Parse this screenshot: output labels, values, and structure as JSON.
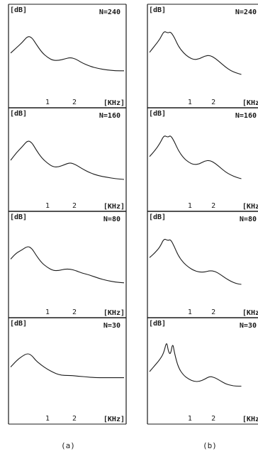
{
  "colors": {
    "ink": "#1a1a1a",
    "background": "#ffffff"
  },
  "columns": [
    {
      "caption": "(a)",
      "panels": [
        {
          "ylabel": "[dB]",
          "n_label": "N=240",
          "xunit": "[KHz]",
          "xticks": [
            "1",
            "2"
          ]
        },
        {
          "ylabel": "[dB]",
          "n_label": "N=160",
          "xunit": "[KHz]",
          "xticks": [
            "1",
            "2"
          ]
        },
        {
          "ylabel": "[dB]",
          "n_label": "N=80",
          "xunit": "[KHz]",
          "xticks": [
            "1",
            "2"
          ]
        },
        {
          "ylabel": "[dB]",
          "n_label": "N=30",
          "xunit": "[KHz]",
          "xticks": [
            "1",
            "2"
          ]
        }
      ]
    },
    {
      "caption": "(b)",
      "panels": [
        {
          "ylabel": "[dB]",
          "n_label": "N=240",
          "xunit": "[KHz",
          "xticks": [
            "1",
            "2"
          ]
        },
        {
          "ylabel": "[dB]",
          "n_label": "N=160",
          "xunit": "[KHz",
          "xticks": [
            "1",
            "2"
          ]
        },
        {
          "ylabel": "[dB]",
          "n_label": "N=80",
          "xunit": "[KHz",
          "xticks": [
            "1",
            "2"
          ]
        },
        {
          "ylabel": "[dB]",
          "n_label": "N=30",
          "xunit": "[KHz",
          "xticks": [
            "1",
            "2"
          ]
        }
      ]
    }
  ],
  "chart_data": {
    "type": "line",
    "note_units": "x in kHz, y in relative dB (unlabelled scale, 0-1 of panel height)",
    "xlim": [
      0,
      4
    ],
    "ylim": [
      0,
      1
    ],
    "panels": [
      {
        "column": "(a)",
        "label": "N=240",
        "x": [
          0,
          0.2,
          0.4,
          0.6,
          0.75,
          0.9,
          1.1,
          1.3,
          1.5,
          1.7,
          1.9,
          2.1,
          2.3,
          2.5,
          2.8,
          3.1,
          3.4,
          3.7,
          4.0
        ],
        "y": [
          0.55,
          0.62,
          0.69,
          0.78,
          0.76,
          0.67,
          0.56,
          0.49,
          0.45,
          0.45,
          0.47,
          0.49,
          0.47,
          0.42,
          0.37,
          0.34,
          0.32,
          0.31,
          0.31
        ]
      },
      {
        "column": "(a)",
        "label": "N=160",
        "x": [
          0,
          0.2,
          0.4,
          0.6,
          0.75,
          0.9,
          1.1,
          1.3,
          1.5,
          1.7,
          1.9,
          2.1,
          2.3,
          2.5,
          2.8,
          3.1,
          3.4,
          3.7,
          4.0
        ],
        "y": [
          0.5,
          0.6,
          0.68,
          0.77,
          0.74,
          0.64,
          0.53,
          0.46,
          0.41,
          0.41,
          0.44,
          0.47,
          0.44,
          0.39,
          0.33,
          0.29,
          0.27,
          0.25,
          0.24
        ]
      },
      {
        "column": "(a)",
        "label": "N=80",
        "x": [
          0,
          0.2,
          0.4,
          0.6,
          0.75,
          0.9,
          1.1,
          1.3,
          1.5,
          1.7,
          1.9,
          2.1,
          2.3,
          2.5,
          2.8,
          3.1,
          3.4,
          3.7,
          4.0
        ],
        "y": [
          0.58,
          0.66,
          0.7,
          0.75,
          0.72,
          0.63,
          0.53,
          0.47,
          0.43,
          0.43,
          0.45,
          0.45,
          0.43,
          0.4,
          0.37,
          0.33,
          0.3,
          0.28,
          0.27
        ]
      },
      {
        "column": "(a)",
        "label": "N=30",
        "x": [
          0,
          0.2,
          0.4,
          0.6,
          0.75,
          0.9,
          1.1,
          1.3,
          1.5,
          1.7,
          1.9,
          2.1,
          2.4,
          2.7,
          3.0,
          3.3,
          3.6,
          4.0
        ],
        "y": [
          0.56,
          0.64,
          0.7,
          0.74,
          0.71,
          0.64,
          0.58,
          0.53,
          0.49,
          0.46,
          0.45,
          0.45,
          0.44,
          0.43,
          0.42,
          0.42,
          0.42,
          0.42
        ]
      },
      {
        "column": "(b)",
        "label": "N=240",
        "x": [
          0,
          0.2,
          0.4,
          0.55,
          0.7,
          0.8,
          0.95,
          1.1,
          1.3,
          1.5,
          1.7,
          1.9,
          2.1,
          2.3,
          2.5,
          2.7,
          2.9,
          3.1,
          3.3,
          3.5
        ],
        "y": [
          0.56,
          0.65,
          0.74,
          0.85,
          0.82,
          0.84,
          0.76,
          0.64,
          0.55,
          0.49,
          0.46,
          0.47,
          0.51,
          0.52,
          0.48,
          0.42,
          0.36,
          0.31,
          0.28,
          0.26
        ]
      },
      {
        "column": "(b)",
        "label": "N=160",
        "x": [
          0,
          0.2,
          0.4,
          0.55,
          0.7,
          0.8,
          0.95,
          1.1,
          1.3,
          1.5,
          1.7,
          1.9,
          2.1,
          2.3,
          2.5,
          2.7,
          2.9,
          3.1,
          3.3,
          3.5
        ],
        "y": [
          0.55,
          0.63,
          0.73,
          0.84,
          0.81,
          0.84,
          0.75,
          0.63,
          0.53,
          0.47,
          0.44,
          0.45,
          0.49,
          0.5,
          0.46,
          0.4,
          0.34,
          0.3,
          0.27,
          0.25
        ]
      },
      {
        "column": "(b)",
        "label": "N=80",
        "x": [
          0,
          0.2,
          0.4,
          0.55,
          0.7,
          0.8,
          0.95,
          1.1,
          1.3,
          1.5,
          1.7,
          1.9,
          2.1,
          2.3,
          2.5,
          2.7,
          2.9,
          3.1,
          3.3,
          3.5
        ],
        "y": [
          0.6,
          0.66,
          0.74,
          0.85,
          0.82,
          0.84,
          0.74,
          0.62,
          0.53,
          0.47,
          0.43,
          0.41,
          0.41,
          0.43,
          0.42,
          0.38,
          0.33,
          0.29,
          0.26,
          0.25
        ]
      },
      {
        "column": "(b)",
        "label": "N=30",
        "x": [
          0,
          0.2,
          0.4,
          0.55,
          0.65,
          0.72,
          0.8,
          0.88,
          0.95,
          1.1,
          1.3,
          1.5,
          1.7,
          1.9,
          2.1,
          2.3,
          2.5,
          2.7,
          2.9,
          3.1,
          3.3,
          3.5
        ],
        "y": [
          0.5,
          0.58,
          0.66,
          0.75,
          0.9,
          0.76,
          0.72,
          0.88,
          0.74,
          0.55,
          0.45,
          0.4,
          0.37,
          0.37,
          0.4,
          0.44,
          0.42,
          0.38,
          0.34,
          0.32,
          0.31,
          0.31
        ]
      }
    ]
  }
}
